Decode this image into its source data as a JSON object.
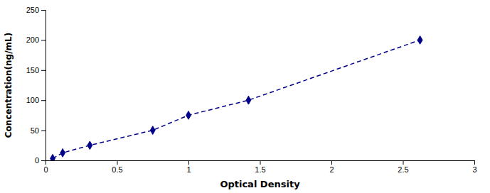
{
  "chart_data": {
    "type": "line",
    "x": [
      0.05,
      0.12,
      0.31,
      0.75,
      1.0,
      1.42,
      2.62
    ],
    "values": [
      3.125,
      12.5,
      25,
      50,
      75,
      100,
      200
    ],
    "color": "#00008B",
    "marker": "diamond",
    "line_style": "dashed",
    "xlabel": "Optical Density",
    "ylabel": "Concentration(ng/mL)",
    "xlim": [
      0,
      3
    ],
    "ylim": [
      0,
      250
    ],
    "xticks": [
      0,
      0.5,
      1,
      1.5,
      2,
      2.5,
      3
    ],
    "yticks": [
      0,
      50,
      100,
      150,
      200,
      250
    ],
    "grid": false
  }
}
